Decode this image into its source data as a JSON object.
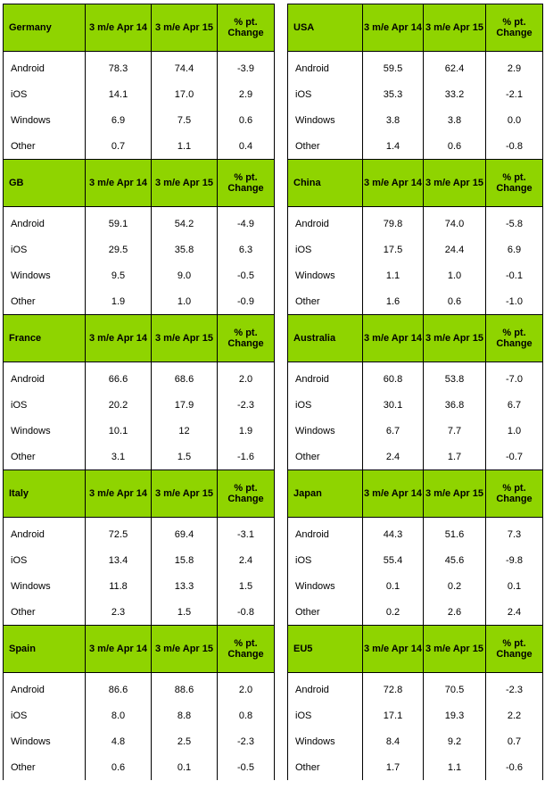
{
  "left": [
    {
      "region": "Germany",
      "col1": "3 m/e Apr 14",
      "col2": "3 m/e Apr 15",
      "col3": "% pt. Change",
      "rows": [
        [
          "Android",
          "78.3",
          "74.4",
          "-3.9"
        ],
        [
          "iOS",
          "14.1",
          "17.0",
          "2.9"
        ],
        [
          "Windows",
          "6.9",
          "7.5",
          "0.6"
        ],
        [
          "Other",
          "0.7",
          "1.1",
          "0.4"
        ]
      ]
    },
    {
      "region": "GB",
      "col1": "3 m/e Apr 14",
      "col2": "3 m/e Apr 15",
      "col3": "% pt. Change",
      "rows": [
        [
          "Android",
          "59.1",
          "54.2",
          "-4.9"
        ],
        [
          "iOS",
          "29.5",
          "35.8",
          "6.3"
        ],
        [
          "Windows",
          "9.5",
          "9.0",
          "-0.5"
        ],
        [
          "Other",
          "1.9",
          "1.0",
          "-0.9"
        ]
      ]
    },
    {
      "region": "France",
      "col1": "3 m/e Apr 14",
      "col2": "3 m/e Apr 15",
      "col3": "% pt. Change",
      "rows": [
        [
          "Android",
          "66.6",
          "68.6",
          "2.0"
        ],
        [
          "iOS",
          "20.2",
          "17.9",
          "-2.3"
        ],
        [
          "Windows",
          "10.1",
          "12",
          "1.9"
        ],
        [
          "Other",
          "3.1",
          "1.5",
          "-1.6"
        ]
      ]
    },
    {
      "region": "Italy",
      "col1": "3 m/e Apr 14",
      "col2": "3 m/e Apr 15",
      "col3": "% pt. Change",
      "rows": [
        [
          "Android",
          "72.5",
          "69.4",
          "-3.1"
        ],
        [
          "iOS",
          "13.4",
          "15.8",
          "2.4"
        ],
        [
          "Windows",
          "11.8",
          "13.3",
          "1.5"
        ],
        [
          "Other",
          "2.3",
          "1.5",
          "-0.8"
        ]
      ]
    },
    {
      "region": "Spain",
      "col1": "3 m/e Apr 14",
      "col2": "3 m/e Apr 15",
      "col3": "% pt. Change",
      "rows": [
        [
          "Android",
          "86.6",
          "88.6",
          "2.0"
        ],
        [
          "iOS",
          "8.0",
          "8.8",
          "0.8"
        ],
        [
          "Windows",
          "4.8",
          "2.5",
          "-2.3"
        ],
        [
          "Other",
          "0.6",
          "0.1",
          "-0.5"
        ]
      ]
    }
  ],
  "right": [
    {
      "region": "USA",
      "col1": "3 m/e Apr 14",
      "col2": "3 m/e Apr 15",
      "col3": "% pt. Change",
      "rows": [
        [
          "Android",
          "59.5",
          "62.4",
          "2.9"
        ],
        [
          "iOS",
          "35.3",
          "33.2",
          "-2.1"
        ],
        [
          "Windows",
          "3.8",
          "3.8",
          "0.0"
        ],
        [
          "Other",
          "1.4",
          "0.6",
          "-0.8"
        ]
      ]
    },
    {
      "region": "China",
      "col1": "3 m/e Apr 14",
      "col2": "3 m/e Apr 15",
      "col3": "% pt. Change",
      "rows": [
        [
          "Android",
          "79.8",
          "74.0",
          "-5.8"
        ],
        [
          "iOS",
          "17.5",
          "24.4",
          "6.9"
        ],
        [
          "Windows",
          "1.1",
          "1.0",
          "-0.1"
        ],
        [
          "Other",
          "1.6",
          "0.6",
          "-1.0"
        ]
      ]
    },
    {
      "region": "Australia",
      "col1": "3 m/e Apr 14",
      "col2": "3 m/e Apr 15",
      "col3": "% pt. Change",
      "rows": [
        [
          "Android",
          "60.8",
          "53.8",
          "-7.0"
        ],
        [
          "iOS",
          "30.1",
          "36.8",
          "6.7"
        ],
        [
          "Windows",
          "6.7",
          "7.7",
          "1.0"
        ],
        [
          "Other",
          "2.4",
          "1.7",
          "-0.7"
        ]
      ]
    },
    {
      "region": "Japan",
      "col1": "3 m/e Apr 14",
      "col2": "3 m/e Apr 15",
      "col3": "% pt. Change",
      "rows": [
        [
          "Android",
          "44.3",
          "51.6",
          "7.3"
        ],
        [
          "iOS",
          "55.4",
          "45.6",
          "-9.8"
        ],
        [
          "Windows",
          "0.1",
          "0.2",
          "0.1"
        ],
        [
          "Other",
          "0.2",
          "2.6",
          "2.4"
        ]
      ]
    },
    {
      "region": "EU5",
      "col1": "3 m/e Apr 14",
      "col2": "3 m/e Apr 15",
      "col3": "% pt. Change",
      "rows": [
        [
          "Android",
          "72.8",
          "70.5",
          "-2.3"
        ],
        [
          "iOS",
          "17.1",
          "19.3",
          "2.2"
        ],
        [
          "Windows",
          "8.4",
          "9.2",
          "0.7"
        ],
        [
          "Other",
          "1.7",
          "1.1",
          "-0.6"
        ]
      ]
    }
  ]
}
